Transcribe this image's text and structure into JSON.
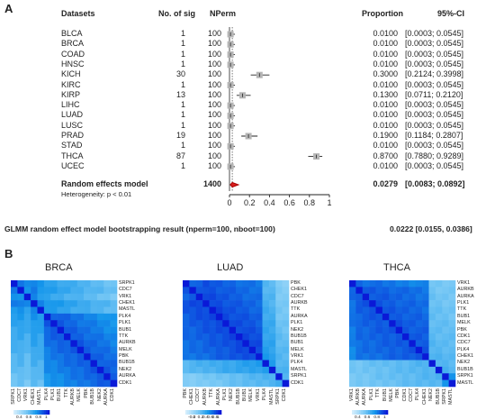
{
  "panel_a": {
    "letter": "A",
    "headers": {
      "datasets": "Datasets",
      "nsig": "No. of sig",
      "nperm": "NPerm",
      "proportion": "Proportion",
      "ci": "95%-CI"
    },
    "rows": [
      {
        "name": "BLCA",
        "nsig": "1",
        "nperm": "100",
        "prop": "0.0100",
        "ci": "[0.0003; 0.0545]"
      },
      {
        "name": "BRCA",
        "nsig": "1",
        "nperm": "100",
        "prop": "0.0100",
        "ci": "[0.0003; 0.0545]"
      },
      {
        "name": "COAD",
        "nsig": "1",
        "nperm": "100",
        "prop": "0.0100",
        "ci": "[0.0003; 0.0545]"
      },
      {
        "name": "HNSC",
        "nsig": "1",
        "nperm": "100",
        "prop": "0.0100",
        "ci": "[0.0003; 0.0545]"
      },
      {
        "name": "KICH",
        "nsig": "30",
        "nperm": "100",
        "prop": "0.3000",
        "ci": "[0.2124; 0.3998]"
      },
      {
        "name": "KIRC",
        "nsig": "1",
        "nperm": "100",
        "prop": "0.0100",
        "ci": "[0.0003; 0.0545]"
      },
      {
        "name": "KIRP",
        "nsig": "13",
        "nperm": "100",
        "prop": "0.1300",
        "ci": "[0.0711; 0.2120]"
      },
      {
        "name": "LIHC",
        "nsig": "1",
        "nperm": "100",
        "prop": "0.0100",
        "ci": "[0.0003; 0.0545]"
      },
      {
        "name": "LUAD",
        "nsig": "1",
        "nperm": "100",
        "prop": "0.0100",
        "ci": "[0.0003; 0.0545]"
      },
      {
        "name": "LUSC",
        "nsig": "1",
        "nperm": "100",
        "prop": "0.0100",
        "ci": "[0.0003; 0.0545]"
      },
      {
        "name": "PRAD",
        "nsig": "19",
        "nperm": "100",
        "prop": "0.1900",
        "ci": "[0.1184; 0.2807]"
      },
      {
        "name": "STAD",
        "nsig": "1",
        "nperm": "100",
        "prop": "0.0100",
        "ci": "[0.0003; 0.0545]"
      },
      {
        "name": "THCA",
        "nsig": "87",
        "nperm": "100",
        "prop": "0.8700",
        "ci": "[0.7880; 0.9289]"
      },
      {
        "name": "UCEC",
        "nsig": "1",
        "nperm": "100",
        "prop": "0.0100",
        "ci": "[0.0003; 0.0545]"
      }
    ],
    "summary": {
      "label": "Random effects model",
      "nperm": "1400",
      "prop": "0.0279",
      "ci": "[0.0083; 0.0892]"
    },
    "heterogeneity": "Heterogeneity: p < 0.01",
    "glmm": {
      "label": "GLMM random effect model bootstrapping result (nperm=100, nboot=100)",
      "value": "0.0222 [0.0155, 0.0386]"
    }
  },
  "panel_b": {
    "letter": "B",
    "heatmaps": [
      {
        "title": "BRCA",
        "row_labels": [
          "SRPK1",
          "CDC7",
          "VRK1",
          "CHEK1",
          "MASTL",
          "PLK4",
          "PLK1",
          "BUB1",
          "TTK",
          "AURKB",
          "MELK",
          "PBK",
          "BUB1B",
          "NEK2",
          "AURKA",
          "CDK1"
        ],
        "col_labels": [
          "SRPK1",
          "CDC7",
          "VRK1",
          "CHEK1",
          "MASTL",
          "PLK4",
          "PLK1",
          "BUB1",
          "TTK",
          "AURKB",
          "MELK",
          "PBK",
          "BUB1B",
          "NEK2",
          "AURKA",
          "CDK1"
        ],
        "colorbar_ticks": [
          "0.4",
          "0.6",
          "0.8",
          "1"
        ]
      },
      {
        "title": "LUAD",
        "row_labels": [
          "PBK",
          "CHEK1",
          "CDC7",
          "AURKB",
          "TTK",
          "AURKA",
          "PLK1",
          "NEK2",
          "BUB1B",
          "BUB1",
          "MELK",
          "VRK1",
          "PLK4",
          "MASTL",
          "SRPK1",
          "CDK1"
        ],
        "col_labels": [
          "PBK",
          "CHEK1",
          "CDC7",
          "AURKB",
          "TTK",
          "AURKA",
          "PLK1",
          "NEK2",
          "BUB1B",
          "BUB1",
          "MELK",
          "VRK1",
          "PLK4",
          "MASTL",
          "SRPK1",
          "CDK1"
        ],
        "colorbar_ticks": [
          "-0.2",
          "0",
          "0.2",
          "0.4",
          "0.6",
          "0.8",
          "1"
        ]
      },
      {
        "title": "THCA",
        "row_labels": [
          "VRK1",
          "AURKB",
          "AURKA",
          "PLK1",
          "TTK",
          "BUB1",
          "MELK",
          "PBK",
          "CDK1",
          "CDC7",
          "PLK4",
          "CHEK1",
          "NEK2",
          "BUB1B",
          "SRPK1",
          "MASTL"
        ],
        "col_labels": [
          "VRK1",
          "AURKB",
          "AURKA",
          "PLK1",
          "TTK",
          "BUB1",
          "MELK",
          "PBK",
          "CDK1",
          "CDC7",
          "PLK4",
          "CHEK1",
          "NEK2",
          "BUB1B",
          "SRPK1",
          "MASTL"
        ],
        "colorbar_ticks": [
          "0.4",
          "0.6",
          "0.8",
          "1"
        ]
      }
    ]
  },
  "chart_data": [
    {
      "type": "forest",
      "categories": [
        "BLCA",
        "BRCA",
        "COAD",
        "HNSC",
        "KICH",
        "KIRC",
        "KIRP",
        "LIHC",
        "LUAD",
        "LUSC",
        "PRAD",
        "STAD",
        "THCA",
        "UCEC"
      ],
      "values": [
        0.01,
        0.01,
        0.01,
        0.01,
        0.3,
        0.01,
        0.13,
        0.01,
        0.01,
        0.01,
        0.19,
        0.01,
        0.87,
        0.01
      ],
      "ci_low": [
        0.0003,
        0.0003,
        0.0003,
        0.0003,
        0.2124,
        0.0003,
        0.0711,
        0.0003,
        0.0003,
        0.0003,
        0.1184,
        0.0003,
        0.788,
        0.0003
      ],
      "ci_high": [
        0.0545,
        0.0545,
        0.0545,
        0.0545,
        0.3998,
        0.0545,
        0.212,
        0.0545,
        0.0545,
        0.0545,
        0.2807,
        0.0545,
        0.9289,
        0.0545
      ],
      "summary": {
        "value": 0.0279,
        "ci_low": 0.0083,
        "ci_high": 0.0892
      },
      "xlim": [
        0,
        1
      ],
      "xticks": [
        "0",
        "0.2",
        "0.4",
        "0.6",
        "0.8",
        "1"
      ],
      "title": "",
      "xlabel": "",
      "ylabel": ""
    },
    {
      "type": "heatmap",
      "title": "BRCA",
      "colorscale": [
        "#ffffff",
        "#0ea5ee",
        "#0b1ed8"
      ]
    },
    {
      "type": "heatmap",
      "title": "LUAD",
      "colorscale": [
        "#ffffff",
        "#0ea5ee",
        "#0b1ed8"
      ]
    },
    {
      "type": "heatmap",
      "title": "THCA",
      "colorscale": [
        "#ffffff",
        "#0ea5ee",
        "#0b1ed8"
      ]
    }
  ]
}
